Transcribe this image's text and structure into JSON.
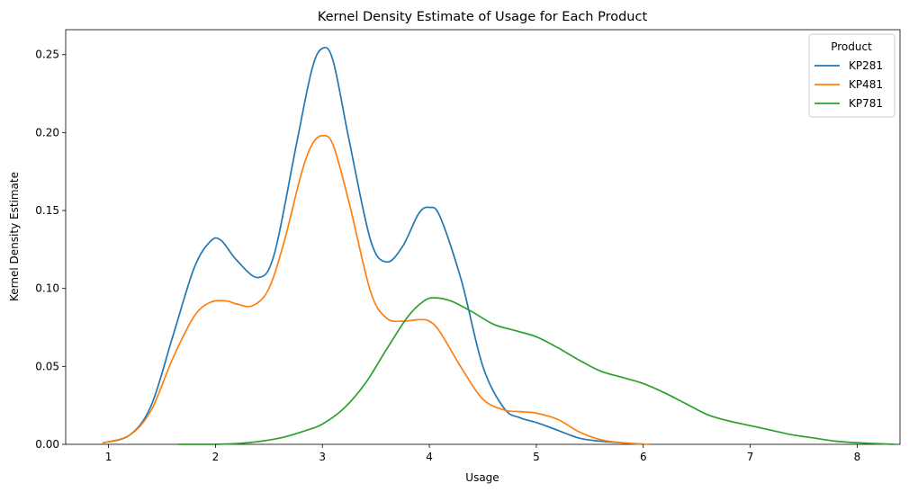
{
  "chart_data": {
    "type": "line",
    "title": "Kernel Density Estimate of Usage for Each Product",
    "xlabel": "Usage",
    "ylabel": "Kernel Density Estimate",
    "xlim": [
      0.6,
      8.4
    ],
    "ylim": [
      0,
      0.266
    ],
    "xticks": [
      1,
      2,
      3,
      4,
      5,
      6,
      7,
      8
    ],
    "xtick_labels": [
      "1",
      "2",
      "3",
      "4",
      "5",
      "6",
      "7",
      "8"
    ],
    "yticks": [
      0,
      0.05,
      0.1,
      0.15,
      0.2,
      0.25
    ],
    "ytick_labels": [
      "0.00",
      "0.05",
      "0.10",
      "0.15",
      "0.20",
      "0.25"
    ],
    "grid": false,
    "legend": {
      "title": "Product",
      "placement": "top-right"
    },
    "series": [
      {
        "name": "KP281",
        "color": "#1f77b4",
        "x": [
          0.95,
          1.2,
          1.4,
          1.6,
          1.8,
          1.95,
          2.05,
          2.2,
          2.4,
          2.55,
          2.75,
          2.9,
          3.0,
          3.1,
          3.25,
          3.45,
          3.6,
          3.75,
          3.9,
          4.0,
          4.1,
          4.3,
          4.5,
          4.7,
          4.85,
          5.0,
          5.2,
          5.4,
          5.6,
          5.8,
          6.0
        ],
        "y": [
          0.001,
          0.006,
          0.025,
          0.069,
          0.113,
          0.13,
          0.131,
          0.118,
          0.107,
          0.122,
          0.19,
          0.24,
          0.254,
          0.246,
          0.195,
          0.131,
          0.117,
          0.127,
          0.148,
          0.152,
          0.146,
          0.105,
          0.05,
          0.023,
          0.017,
          0.014,
          0.009,
          0.004,
          0.002,
          0.001,
          0.0
        ]
      },
      {
        "name": "KP481",
        "color": "#ff7f0e",
        "x": [
          0.95,
          1.2,
          1.4,
          1.6,
          1.8,
          1.95,
          2.1,
          2.2,
          2.35,
          2.5,
          2.65,
          2.8,
          2.9,
          3.0,
          3.1,
          3.25,
          3.45,
          3.6,
          3.75,
          3.9,
          4.0,
          4.1,
          4.3,
          4.5,
          4.7,
          4.85,
          5.0,
          5.2,
          5.4,
          5.6,
          5.8,
          6.05
        ],
        "y": [
          0.001,
          0.006,
          0.022,
          0.055,
          0.082,
          0.091,
          0.092,
          0.09,
          0.089,
          0.1,
          0.132,
          0.173,
          0.192,
          0.198,
          0.192,
          0.155,
          0.098,
          0.081,
          0.079,
          0.08,
          0.079,
          0.072,
          0.049,
          0.029,
          0.022,
          0.021,
          0.02,
          0.016,
          0.008,
          0.003,
          0.001,
          0.0
        ]
      },
      {
        "name": "KP781",
        "color": "#2ca02c",
        "x": [
          1.65,
          2.0,
          2.3,
          2.6,
          2.85,
          3.0,
          3.2,
          3.4,
          3.6,
          3.8,
          3.95,
          4.05,
          4.2,
          4.4,
          4.6,
          4.8,
          5.0,
          5.2,
          5.4,
          5.6,
          5.8,
          6.0,
          6.2,
          6.4,
          6.6,
          6.8,
          7.0,
          7.2,
          7.4,
          7.6,
          7.8,
          8.0,
          8.35
        ],
        "y": [
          0.0,
          0.0,
          0.001,
          0.004,
          0.009,
          0.013,
          0.023,
          0.039,
          0.061,
          0.082,
          0.092,
          0.094,
          0.092,
          0.085,
          0.077,
          0.073,
          0.069,
          0.062,
          0.054,
          0.047,
          0.043,
          0.039,
          0.033,
          0.026,
          0.019,
          0.015,
          0.012,
          0.009,
          0.006,
          0.004,
          0.002,
          0.001,
          0.0
        ]
      }
    ]
  }
}
